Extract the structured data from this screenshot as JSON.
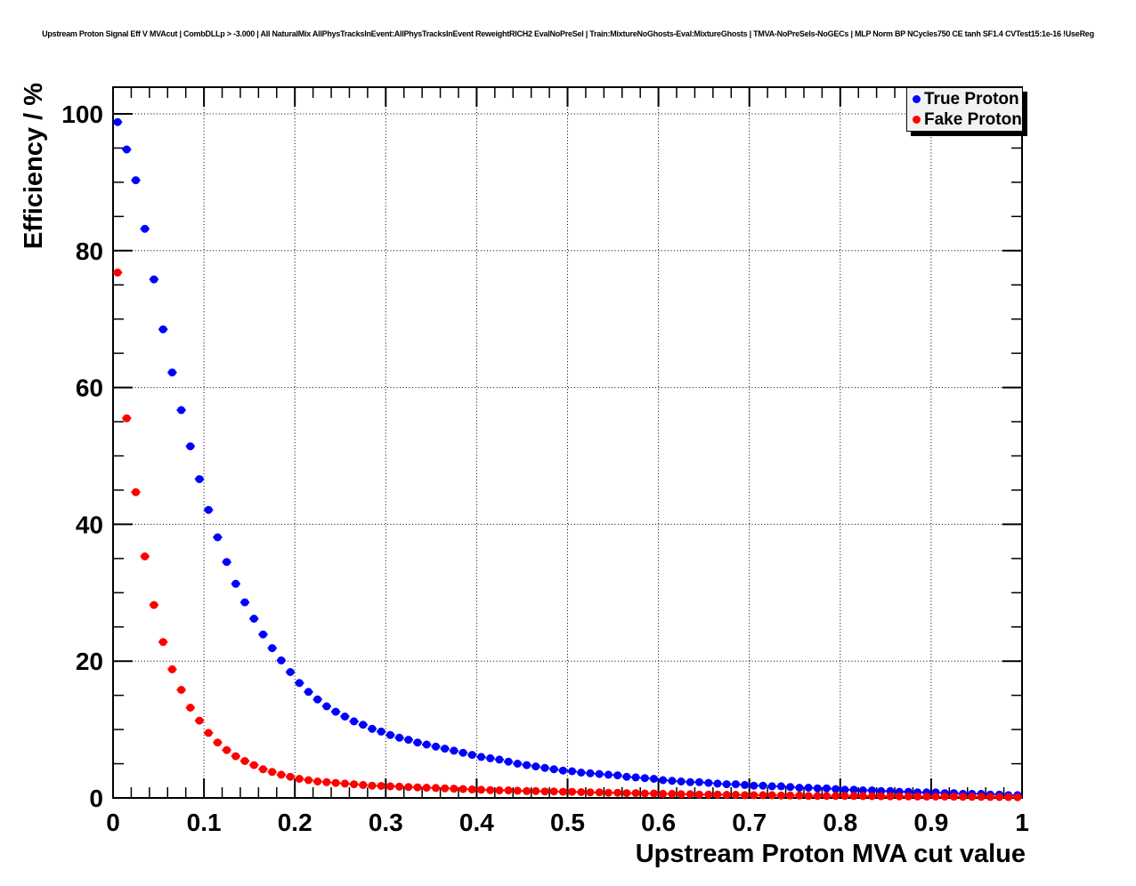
{
  "header": {
    "title": "Upstream Proton Signal Eff V MVAcut | CombDLLp > -3.000 | All NaturalMix AllPhysTracksInEvent:AllPhysTracksInEvent ReweightRICH2 EvalNoPreSel | Train:MixtureNoGhosts-Eval:MixtureGhosts | TMVA-NoPreSels-NoGECs | MLP Norm BP NCycles750 CE tanh SF1.4 CVTest15:1e-16 !UseReg"
  },
  "chart_data": {
    "type": "scatter",
    "title": "Upstream Proton Signal Eff V MVAcut | CombDLLp > -3.000 | All NaturalMix AllPhysTracksInEvent:AllPhysTracksInEvent ReweightRICH2 EvalNoPreSel | Train:MixtureNoGhosts-Eval:MixtureGhosts | TMVA-NoPreSels-NoGECs | MLP Norm BP NCycles750 CE tanh SF1.4 CVTest15:1e-16 !UseReg",
    "xlabel": "Upstream Proton MVA cut value",
    "ylabel": "Efficiency / %",
    "xlim": [
      0,
      1
    ],
    "ylim": [
      0,
      103.9
    ],
    "grid": "dotted",
    "legend_position": "top-right",
    "x_ticks": {
      "values": [
        0,
        0.1,
        0.2,
        0.3,
        0.4,
        0.5,
        0.6,
        0.7,
        0.8,
        0.9,
        1
      ],
      "labels": [
        "0",
        "0.1",
        "0.2",
        "0.3",
        "0.4",
        "0.5",
        "0.6",
        "0.7",
        "0.8",
        "0.9",
        "1"
      ],
      "minor_step": 0.02
    },
    "y_ticks": {
      "values": [
        0,
        20,
        40,
        60,
        80,
        100
      ],
      "labels": [
        "0",
        "20",
        "40",
        "60",
        "80",
        "100"
      ],
      "minor_step": 5
    },
    "x_error": 0.005,
    "x": [
      0.005,
      0.015,
      0.025,
      0.035,
      0.045,
      0.055,
      0.065,
      0.075,
      0.085,
      0.095,
      0.105,
      0.115,
      0.125,
      0.135,
      0.145,
      0.155,
      0.165,
      0.175,
      0.185,
      0.195,
      0.205,
      0.215,
      0.225,
      0.235,
      0.245,
      0.255,
      0.265,
      0.275,
      0.285,
      0.295,
      0.305,
      0.315,
      0.325,
      0.335,
      0.345,
      0.355,
      0.365,
      0.375,
      0.385,
      0.395,
      0.405,
      0.415,
      0.425,
      0.435,
      0.445,
      0.455,
      0.465,
      0.475,
      0.485,
      0.495,
      0.505,
      0.515,
      0.525,
      0.535,
      0.545,
      0.555,
      0.565,
      0.575,
      0.585,
      0.595,
      0.605,
      0.615,
      0.625,
      0.635,
      0.645,
      0.655,
      0.665,
      0.675,
      0.685,
      0.695,
      0.705,
      0.715,
      0.725,
      0.735,
      0.745,
      0.755,
      0.765,
      0.775,
      0.785,
      0.795,
      0.805,
      0.815,
      0.825,
      0.835,
      0.845,
      0.855,
      0.865,
      0.875,
      0.885,
      0.895,
      0.905,
      0.915,
      0.925,
      0.935,
      0.945,
      0.955,
      0.965,
      0.975,
      0.985,
      0.995
    ],
    "series": [
      {
        "name": "True Proton",
        "color": "#0000ff",
        "values": [
          98.8,
          94.8,
          90.3,
          83.2,
          75.8,
          68.5,
          62.2,
          56.7,
          51.4,
          46.6,
          42.1,
          38.1,
          34.5,
          31.3,
          28.6,
          26.2,
          23.9,
          21.9,
          20.1,
          18.4,
          16.8,
          15.5,
          14.4,
          13.4,
          12.6,
          11.9,
          11.2,
          10.7,
          10.1,
          9.7,
          9.2,
          8.8,
          8.5,
          8.1,
          7.8,
          7.5,
          7.2,
          6.9,
          6.6,
          6.3,
          6.0,
          5.8,
          5.6,
          5.3,
          5.0,
          4.8,
          4.6,
          4.4,
          4.2,
          4.0,
          3.9,
          3.7,
          3.6,
          3.5,
          3.4,
          3.3,
          3.1,
          3.0,
          2.9,
          2.8,
          2.6,
          2.5,
          2.4,
          2.3,
          2.3,
          2.2,
          2.1,
          2.0,
          2.0,
          1.9,
          1.8,
          1.8,
          1.7,
          1.7,
          1.6,
          1.5,
          1.5,
          1.4,
          1.4,
          1.3,
          1.2,
          1.2,
          1.1,
          1.1,
          1.0,
          1.0,
          0.9,
          0.9,
          0.8,
          0.8,
          0.8,
          0.7,
          0.7,
          0.6,
          0.6,
          0.6,
          0.5,
          0.5,
          0.4,
          0.4
        ]
      },
      {
        "name": "Fake Proton",
        "color": "#ff0000",
        "values": [
          76.8,
          55.5,
          44.7,
          35.3,
          28.2,
          22.8,
          18.8,
          15.8,
          13.2,
          11.3,
          9.5,
          8.1,
          7.0,
          6.1,
          5.4,
          4.8,
          4.2,
          3.8,
          3.4,
          3.1,
          2.8,
          2.6,
          2.4,
          2.3,
          2.2,
          2.1,
          2.0,
          1.9,
          1.8,
          1.75,
          1.7,
          1.65,
          1.6,
          1.55,
          1.5,
          1.45,
          1.4,
          1.35,
          1.3,
          1.25,
          1.2,
          1.15,
          1.1,
          1.1,
          1.05,
          1.0,
          1.0,
          0.95,
          0.95,
          0.9,
          0.9,
          0.85,
          0.8,
          0.8,
          0.75,
          0.75,
          0.7,
          0.7,
          0.65,
          0.65,
          0.6,
          0.6,
          0.55,
          0.55,
          0.5,
          0.5,
          0.5,
          0.45,
          0.45,
          0.4,
          0.4,
          0.4,
          0.4,
          0.35,
          0.35,
          0.35,
          0.3,
          0.3,
          0.3,
          0.3,
          0.3,
          0.28,
          0.27,
          0.26,
          0.25,
          0.24,
          0.23,
          0.22,
          0.21,
          0.2,
          0.2,
          0.19,
          0.18,
          0.17,
          0.16,
          0.15,
          0.14,
          0.13,
          0.12,
          0.1
        ]
      }
    ],
    "colors": {
      "background": "#ffffff",
      "axis": "#000000",
      "grid": "#000000",
      "legend_bg": "#f2f2f2",
      "legend_shadow": "#000000"
    }
  }
}
